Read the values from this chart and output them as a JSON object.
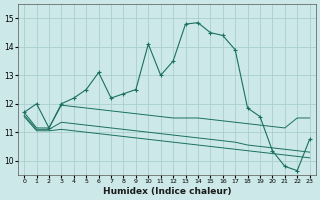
{
  "xlabel": "Humidex (Indice chaleur)",
  "ylabel": "",
  "background_color": "#cce8e8",
  "grid_color": "#aacfcf",
  "line_color": "#1a7060",
  "xlim": [
    -0.5,
    23.5
  ],
  "ylim": [
    9.5,
    15.5
  ],
  "yticks": [
    10,
    11,
    12,
    13,
    14,
    15
  ],
  "xticks": [
    0,
    1,
    2,
    3,
    4,
    5,
    6,
    7,
    8,
    9,
    10,
    11,
    12,
    13,
    14,
    15,
    16,
    17,
    18,
    19,
    20,
    21,
    22,
    23
  ],
  "series1_x": [
    0,
    1,
    2,
    3,
    4,
    5,
    6,
    7,
    8,
    9,
    10,
    11,
    12,
    13,
    14,
    15,
    16,
    17,
    18,
    19,
    20,
    21,
    22,
    23
  ],
  "series1_y": [
    11.7,
    12.0,
    11.15,
    12.0,
    12.2,
    12.5,
    13.1,
    12.2,
    12.35,
    12.5,
    14.1,
    13.0,
    13.5,
    14.8,
    14.85,
    14.5,
    14.4,
    13.9,
    11.85,
    11.55,
    10.35,
    9.8,
    9.65,
    10.75
  ],
  "series2_x": [
    0,
    1,
    2,
    3,
    4,
    5,
    6,
    7,
    8,
    9,
    10,
    11,
    12,
    13,
    14,
    15,
    16,
    17,
    18,
    19,
    20,
    21,
    22,
    23
  ],
  "series2_y": [
    11.7,
    11.15,
    11.15,
    11.95,
    11.9,
    11.85,
    11.8,
    11.75,
    11.7,
    11.65,
    11.6,
    11.55,
    11.5,
    11.5,
    11.5,
    11.45,
    11.4,
    11.35,
    11.3,
    11.25,
    11.2,
    11.15,
    11.5,
    11.5
  ],
  "series3_x": [
    0,
    1,
    2,
    3,
    4,
    5,
    6,
    7,
    8,
    9,
    10,
    11,
    12,
    13,
    14,
    15,
    16,
    17,
    18,
    19,
    20,
    21,
    22,
    23
  ],
  "series3_y": [
    11.6,
    11.1,
    11.1,
    11.35,
    11.3,
    11.25,
    11.2,
    11.15,
    11.1,
    11.05,
    11.0,
    10.95,
    10.9,
    10.85,
    10.8,
    10.75,
    10.7,
    10.65,
    10.55,
    10.5,
    10.45,
    10.4,
    10.35,
    10.3
  ],
  "series4_x": [
    0,
    1,
    2,
    3,
    4,
    5,
    6,
    7,
    8,
    9,
    10,
    11,
    12,
    13,
    14,
    15,
    16,
    17,
    18,
    19,
    20,
    21,
    22,
    23
  ],
  "series4_y": [
    11.55,
    11.05,
    11.05,
    11.1,
    11.05,
    11.0,
    10.95,
    10.9,
    10.85,
    10.8,
    10.75,
    10.7,
    10.65,
    10.6,
    10.55,
    10.5,
    10.45,
    10.4,
    10.35,
    10.3,
    10.25,
    10.2,
    10.15,
    10.1
  ]
}
